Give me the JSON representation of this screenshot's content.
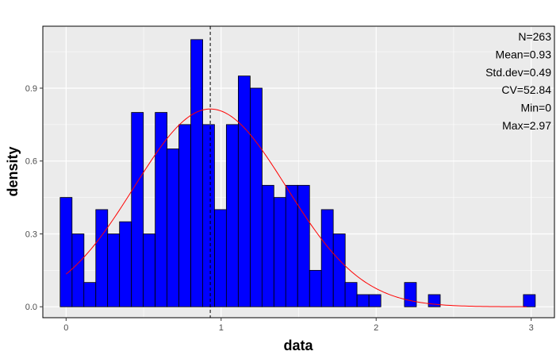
{
  "chart_data": {
    "type": "bar",
    "xlabel": "data",
    "ylabel": "density",
    "xlim": [
      -0.15,
      3.15
    ],
    "ylim": [
      -0.045,
      1.155
    ],
    "x_ticks": [
      {
        "value": 0,
        "label": "0"
      },
      {
        "value": 1,
        "label": "1"
      },
      {
        "value": 2,
        "label": "2"
      },
      {
        "value": 3,
        "label": "3"
      }
    ],
    "y_ticks": [
      {
        "value": 0.0,
        "label": "0.0"
      },
      {
        "value": 0.3,
        "label": "0.3"
      },
      {
        "value": 0.6,
        "label": "0.6"
      },
      {
        "value": 0.9,
        "label": "0.9"
      }
    ],
    "bin_width": 0.0766,
    "bins": [
      {
        "x": 0.0,
        "density": 0.45
      },
      {
        "x": 0.077,
        "density": 0.3
      },
      {
        "x": 0.153,
        "density": 0.1
      },
      {
        "x": 0.23,
        "density": 0.4
      },
      {
        "x": 0.306,
        "density": 0.3
      },
      {
        "x": 0.383,
        "density": 0.35
      },
      {
        "x": 0.46,
        "density": 0.8
      },
      {
        "x": 0.536,
        "density": 0.3
      },
      {
        "x": 0.613,
        "density": 0.8
      },
      {
        "x": 0.689,
        "density": 0.65
      },
      {
        "x": 0.766,
        "density": 0.75
      },
      {
        "x": 0.843,
        "density": 1.1
      },
      {
        "x": 0.919,
        "density": 0.75
      },
      {
        "x": 0.996,
        "density": 0.4
      },
      {
        "x": 1.072,
        "density": 0.75
      },
      {
        "x": 1.149,
        "density": 0.95
      },
      {
        "x": 1.226,
        "density": 0.9
      },
      {
        "x": 1.302,
        "density": 0.5
      },
      {
        "x": 1.379,
        "density": 0.45
      },
      {
        "x": 1.455,
        "density": 0.5
      },
      {
        "x": 1.532,
        "density": 0.5
      },
      {
        "x": 1.609,
        "density": 0.15
      },
      {
        "x": 1.685,
        "density": 0.4
      },
      {
        "x": 1.762,
        "density": 0.3
      },
      {
        "x": 1.838,
        "density": 0.1
      },
      {
        "x": 1.915,
        "density": 0.05
      },
      {
        "x": 1.992,
        "density": 0.05
      },
      {
        "x": 2.221,
        "density": 0.1
      },
      {
        "x": 2.375,
        "density": 0.05
      },
      {
        "x": 2.988,
        "density": 0.05
      }
    ],
    "normal_curve": {
      "mean": 0.93,
      "sd": 0.49,
      "from": 0,
      "to": 2.97
    },
    "mean_line": 0.93,
    "stats": [
      {
        "name": "n",
        "text": "N=263"
      },
      {
        "name": "mean",
        "text": "Mean=0.93"
      },
      {
        "name": "sd",
        "text": "Std.dev=0.49"
      },
      {
        "name": "cv",
        "text": "CV=52.84"
      },
      {
        "name": "min",
        "text": "Min=0"
      },
      {
        "name": "max",
        "text": "Max=2.97"
      }
    ],
    "stats_placement": "top-right",
    "grid": true,
    "colors": {
      "bar_fill": "#0000ff",
      "bar_outline": "#000000",
      "curve": "#ff0000",
      "panel_background": "#ebebeb",
      "grid": "#ffffff"
    }
  }
}
